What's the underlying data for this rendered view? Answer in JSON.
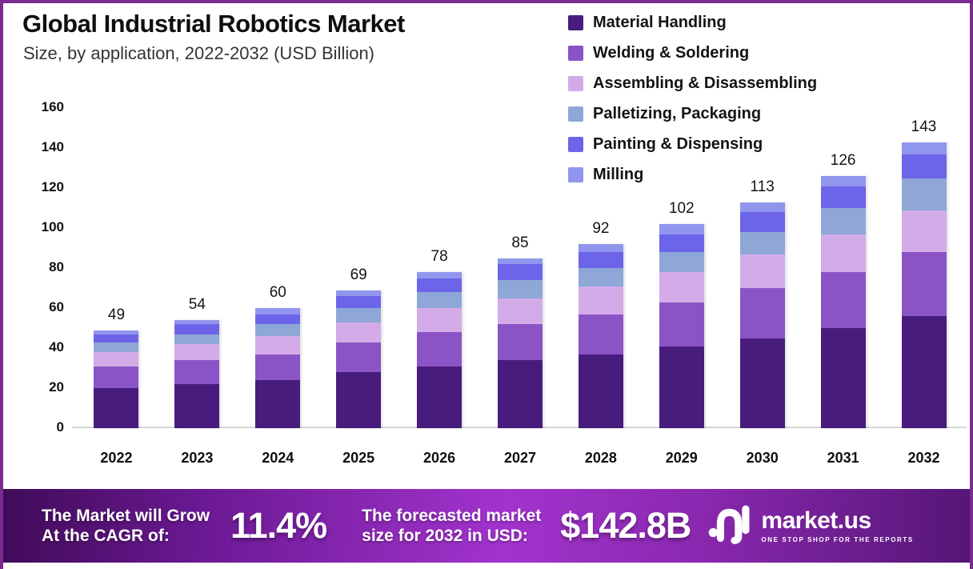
{
  "frame": {
    "border_color": "#7c2a8e",
    "background": "#ffffff"
  },
  "header": {
    "title": "Global Industrial Robotics Market",
    "subtitle": "Size, by application, 2022-2032 (USD Billion)"
  },
  "chart_data": {
    "type": "bar",
    "stacked": true,
    "title": "Global Industrial Robotics Market Size, by application, 2022-2032 (USD Billion)",
    "xlabel": "",
    "ylabel": "",
    "ylim": [
      0,
      160
    ],
    "ytick_step": 20,
    "yticks": [
      0,
      20,
      40,
      60,
      80,
      100,
      120,
      140,
      160
    ],
    "grid": false,
    "legend_position": "top-right",
    "categories": [
      "2022",
      "2023",
      "2024",
      "2025",
      "2026",
      "2027",
      "2028",
      "2029",
      "2030",
      "2031",
      "2032"
    ],
    "totals": [
      49,
      54,
      60,
      69,
      78,
      85,
      92,
      102,
      113,
      126,
      143
    ],
    "series": [
      {
        "name": "Material Handling",
        "color": "#471c7c",
        "values": [
          20,
          22,
          24,
          28,
          31,
          34,
          37,
          41,
          45,
          50,
          56
        ]
      },
      {
        "name": "Welding & Soldering",
        "color": "#8a53c6",
        "values": [
          11,
          12,
          13,
          15,
          17,
          18,
          20,
          22,
          25,
          28,
          32
        ]
      },
      {
        "name": "Assembling & Disassembling",
        "color": "#d2abe8",
        "values": [
          7,
          8,
          9,
          10,
          12,
          13,
          14,
          15,
          17,
          19,
          21
        ]
      },
      {
        "name": "Palletizing, Packaging",
        "color": "#8ea7d7",
        "values": [
          5,
          5,
          6,
          7,
          8,
          9,
          9,
          10,
          11,
          13,
          16
        ]
      },
      {
        "name": "Painting & Dispensing",
        "color": "#6c64e9",
        "values": [
          4,
          5,
          5,
          6,
          7,
          8,
          8,
          9,
          10,
          11,
          12
        ]
      },
      {
        "name": "Milling",
        "color": "#9095ee",
        "values": [
          2,
          2,
          3,
          3,
          3,
          3,
          4,
          5,
          5,
          5,
          6
        ]
      }
    ]
  },
  "banner": {
    "gradient": [
      "#3f0b57",
      "#a233cd",
      "#541675"
    ],
    "cagr_label_line1": "The Market will Grow",
    "cagr_label_line2": "At the CAGR of:",
    "cagr_value": "11.4%",
    "forecast_label_line1": "The forecasted market",
    "forecast_label_line2": "size for 2032 in USD:",
    "forecast_value": "$142.8B",
    "logo_text": "market.us",
    "logo_tagline": "ONE STOP SHOP FOR THE REPORTS"
  }
}
